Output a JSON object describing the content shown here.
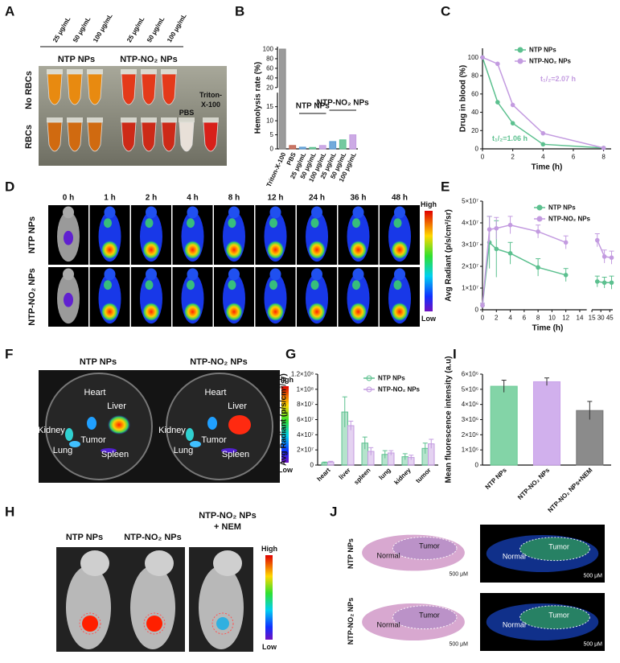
{
  "figure": {
    "A": {
      "label": "A",
      "concentrations": [
        "25 μg/mL",
        "50 μg/mL",
        "100 μg/mL",
        "25 μg/mL",
        "50 μg/mL",
        "100 μg/mL"
      ],
      "groups": [
        "NTP NPs",
        "NTP-NO₂ NPs"
      ],
      "rows": [
        "No RBCs",
        "RBCs"
      ],
      "controls": [
        "PBS",
        "Triton-",
        "X-100"
      ]
    },
    "D": {
      "label": "D",
      "times": [
        "0 h",
        "1 h",
        "2 h",
        "4 h",
        "8 h",
        "12 h",
        "24 h",
        "36 h",
        "48 h"
      ],
      "rows": [
        "NTP NPs",
        "NTP-NO₂ NPs"
      ],
      "scale": [
        "High",
        "Low"
      ]
    },
    "F": {
      "label": "F",
      "groups": [
        "NTP NPs",
        "NTP-NO₂ NPs"
      ],
      "organs": [
        "Heart",
        "Liver",
        "Kidney",
        "Tumor",
        "Lung",
        "Spleen"
      ],
      "scale": [
        "High",
        "Low"
      ]
    },
    "H": {
      "label": "H",
      "groups": [
        "NTP NPs",
        "NTP-NO₂ NPs",
        "NTP-NO₂ NPs",
        "+ NEM"
      ],
      "scale": [
        "High",
        "Low"
      ]
    },
    "J": {
      "label": "J",
      "rows": [
        "NTP NPs",
        "NTP-NO₂ NPs"
      ],
      "regions": [
        "Normal",
        "Tumor"
      ],
      "scalebar": "500 μM"
    }
  },
  "chart_data": [
    {
      "type": "bar",
      "panel": "B",
      "ylabel": "Hemolysis rate (%)",
      "categories": [
        "Triton-X-100",
        "PBS",
        "25 μg/mL",
        "50 μg/mL",
        "100 μg/mL",
        "25 μg/mL",
        "50 μg/mL",
        "100 μg/mL"
      ],
      "values": [
        100,
        1.2,
        0.6,
        0.5,
        1.2,
        2.6,
        3.2,
        5.0
      ],
      "colors": [
        "#8a8a8a",
        "#c0604d",
        "#5b9bd5",
        "#5cc08f",
        "#c39be0",
        "#5b9bd5",
        "#5cc08f",
        "#c39be0"
      ],
      "ylim": [
        0,
        105
      ],
      "ysegments": [
        [
          0,
          20
        ],
        [
          20,
          105
        ]
      ],
      "yticks": [
        0,
        5,
        10,
        15,
        20,
        40,
        60,
        80,
        100
      ],
      "annotations": [
        "NTP NPs",
        "NTP-NO₂ NPs"
      ]
    },
    {
      "type": "line",
      "panel": "C",
      "ylabel": "Drug in blood (%)",
      "xlabel": "Time (h)",
      "x": [
        0,
        1,
        2,
        4,
        8
      ],
      "series": [
        {
          "name": "NTP NPs",
          "color": "#5cc08f",
          "values": [
            100,
            51,
            28,
            5,
            1
          ]
        },
        {
          "name": "NTP-NO₂ NPs",
          "color": "#c39be0",
          "values": [
            100,
            93,
            48,
            17,
            1
          ]
        }
      ],
      "xlim": [
        0,
        8.5
      ],
      "xticks": [
        0,
        2,
        4,
        6,
        8
      ],
      "ylim": [
        0,
        110
      ],
      "yticks": [
        0,
        20,
        40,
        60,
        80,
        100
      ],
      "annotations": [
        "t₁/₂=2.07 h",
        "t₁/₂=1.06 h"
      ]
    },
    {
      "type": "line",
      "panel": "E",
      "ylabel": "Avg Radiant (p/s/cm²/sr)",
      "xlabel": "Time (h)",
      "x": [
        0,
        1,
        2,
        4,
        8,
        12,
        24,
        36,
        48
      ],
      "series": [
        {
          "name": "NTP NPs",
          "color": "#5cc08f",
          "values": [
            2000000,
            31000000,
            28000000,
            26000000,
            19500000,
            16000000,
            13000000,
            12500000,
            12500000
          ],
          "errors": [
            1000000,
            12000000,
            13000000,
            5000000,
            4000000,
            3000000,
            2500000,
            2500000,
            3000000
          ]
        },
        {
          "name": "NTP-NO₂ NPs",
          "color": "#c39be0",
          "values": [
            2000000,
            37000000,
            37500000,
            39000000,
            36000000,
            31000000,
            32000000,
            24500000,
            24000000
          ],
          "errors": [
            1000000,
            6000000,
            5000000,
            4000000,
            3000000,
            3000000,
            3000000,
            3000000,
            3000000
          ]
        }
      ],
      "xlim": [
        0,
        50
      ],
      "xsegments": [
        [
          0,
          15
        ],
        [
          15,
          50
        ]
      ],
      "xticks": [
        0,
        2,
        4,
        6,
        8,
        10,
        12,
        14,
        15,
        30,
        45
      ],
      "ylim": [
        0,
        50000000
      ],
      "yticks": [
        0,
        {
          "value": 10000000,
          "label": "1×10⁷"
        },
        {
          "value": 20000000,
          "label": "2×10⁷"
        },
        {
          "value": 30000000,
          "label": "3×10⁷"
        },
        {
          "value": 40000000,
          "label": "4×10⁷"
        },
        {
          "value": 50000000,
          "label": "5×10⁷"
        }
      ]
    },
    {
      "type": "bar",
      "panel": "G",
      "ylabel": "Avg Radiant (p/s/cm²/sr)",
      "categories": [
        "heart",
        "liver",
        "spleen",
        "lung",
        "kidney",
        "tumor"
      ],
      "series": [
        {
          "name": "NTP NPs",
          "color": "#5cc08f",
          "values": [
            3000000,
            70000000,
            29000000,
            14000000,
            11000000,
            22000000
          ],
          "errors": [
            1000000,
            20000000,
            8000000,
            5000000,
            4000000,
            7000000
          ]
        },
        {
          "name": "NTP-NO₂ NPs",
          "color": "#c39be0",
          "values": [
            4000000,
            52000000,
            18000000,
            16000000,
            10000000,
            28000000
          ],
          "errors": [
            1000000,
            6000000,
            5000000,
            3000000,
            3000000,
            6000000
          ]
        }
      ],
      "ylim": [
        0,
        120000000
      ],
      "yticks": [
        0,
        {
          "value": 20000000,
          "label": "2×10⁷"
        },
        {
          "value": 40000000,
          "label": "4×10⁷"
        },
        {
          "value": 60000000,
          "label": "6×10⁷"
        },
        {
          "value": 80000000,
          "label": "8×10⁷"
        },
        {
          "value": 100000000,
          "label": "1×10⁸"
        },
        {
          "value": 120000000,
          "label": "1.2×10⁸"
        }
      ]
    },
    {
      "type": "bar",
      "panel": "I",
      "ylabel": "Mean fluorescence intensity (a.u)",
      "categories": [
        "NTP NPs",
        "NTP-NO₂ NPs",
        "NTP-NO₂ NPs+NEM"
      ],
      "values": [
        5200000,
        5500000,
        3600000
      ],
      "errors": [
        400000,
        250000,
        600000
      ],
      "colors": [
        "#6dcc98",
        "#c9a2ea",
        "#777777"
      ],
      "ylim": [
        0,
        6000000
      ],
      "yticks": [
        0,
        {
          "value": 1000000,
          "label": "1×10⁶"
        },
        {
          "value": 2000000,
          "label": "2×10⁶"
        },
        {
          "value": 3000000,
          "label": "3×10⁶"
        },
        {
          "value": 4000000,
          "label": "4×10⁶"
        },
        {
          "value": 5000000,
          "label": "5×10⁶"
        },
        {
          "value": 6000000,
          "label": "6×10⁶"
        }
      ]
    }
  ]
}
